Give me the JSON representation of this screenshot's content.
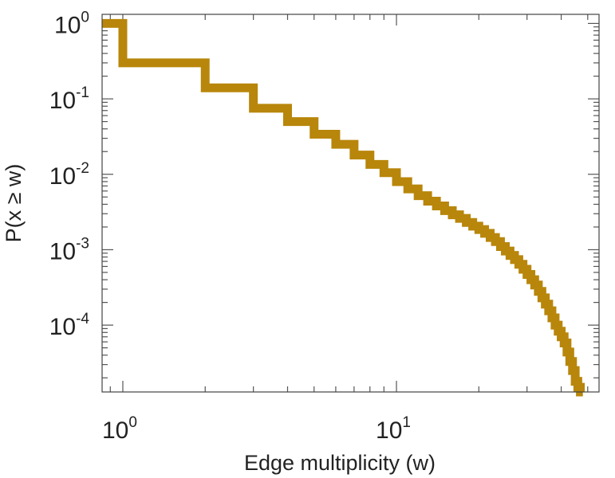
{
  "chart_data": {
    "type": "line",
    "step": true,
    "xscale": "log",
    "yscale": "log",
    "xlabel": "Edge multiplicity (w)",
    "ylabel": "P(x ≥ w)",
    "xlim": [
      0.84,
      55
    ],
    "ylim": [
      1.3e-05,
      1.32
    ],
    "xticks": [
      {
        "value": 1,
        "base": "10",
        "exp": "0"
      },
      {
        "value": 10,
        "base": "10",
        "exp": "1"
      }
    ],
    "yticks": [
      {
        "value": 1,
        "base": "10",
        "exp": "0"
      },
      {
        "value": 0.1,
        "base": "10",
        "exp": "-1"
      },
      {
        "value": 0.01,
        "base": "10",
        "exp": "-2"
      },
      {
        "value": 0.001,
        "base": "10",
        "exp": "-3"
      },
      {
        "value": 0.0001,
        "base": "10",
        "exp": "-4"
      }
    ],
    "series": [
      {
        "color": "#b8860b",
        "x": [
          1,
          2,
          3,
          4,
          5,
          6,
          7,
          8,
          9,
          10,
          11,
          12,
          13,
          14,
          15,
          16,
          17,
          18,
          19,
          20,
          21,
          22,
          23,
          24,
          25,
          26,
          27,
          28,
          29,
          30,
          31,
          32,
          33,
          34,
          35,
          36,
          37,
          38,
          39,
          40,
          41,
          42,
          43,
          44,
          45,
          46,
          47,
          48
        ],
        "y": [
          1.0,
          0.3,
          0.14,
          0.075,
          0.05,
          0.034,
          0.025,
          0.018,
          0.0135,
          0.0105,
          0.008,
          0.0064,
          0.0052,
          0.0044,
          0.0038,
          0.0033,
          0.0029,
          0.0026,
          0.0023,
          0.00205,
          0.00185,
          0.00165,
          0.00145,
          0.00128,
          0.0011,
          0.00096,
          0.00084,
          0.00074,
          0.00064,
          0.00055,
          0.00047,
          0.0004,
          0.00034,
          0.00028,
          0.00023,
          0.00019,
          0.000155,
          0.000125,
          0.0001,
          8.3e-05,
          7e-05,
          5.8e-05,
          4.4e-05,
          3.3e-05,
          2.5e-05,
          1.8e-05,
          1.5e-05,
          1.3e-05
        ]
      }
    ],
    "grid": false,
    "legend": "none"
  }
}
